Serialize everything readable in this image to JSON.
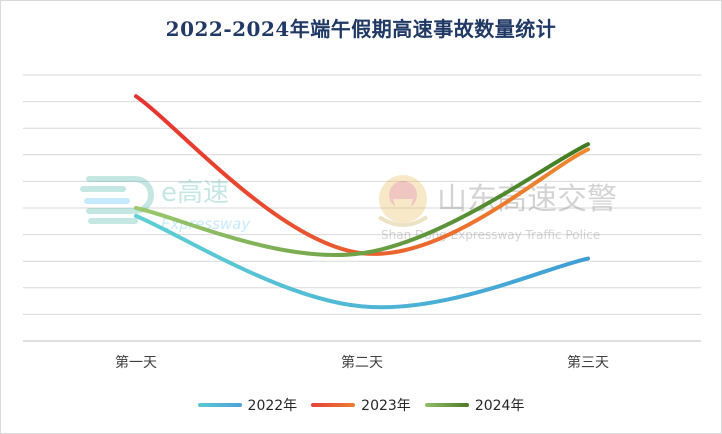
{
  "chart_data": {
    "type": "line",
    "title": "2022-2024年端午假期高速事故数量统计",
    "categories": [
      "第一天",
      "第二天",
      "第三天"
    ],
    "xlabel": "",
    "ylabel": "",
    "ylim": [
      0,
      10
    ],
    "grid": true,
    "smooth": true,
    "legend_position": "bottom",
    "series": [
      {
        "name": "2022年",
        "values": [
          4.7,
          1.3,
          3.1
        ],
        "color": "#5bc8d0",
        "legend_color": "#4aa3d8"
      },
      {
        "name": "2023年",
        "values": [
          9.2,
          3.3,
          7.2
        ],
        "color": "#e5413a",
        "legend_color": "#ed7d31"
      },
      {
        "name": "2024年",
        "values": [
          5.0,
          3.3,
          7.4
        ],
        "color": "#8fbf65",
        "legend_color": "#4f7a28"
      }
    ]
  },
  "watermarks": {
    "logo1_main": "e高速",
    "logo1_sub": "Expressway",
    "logo2_main": "山东高速交警",
    "logo2_sub": "Shan Dong Expressway Traffic Police"
  }
}
